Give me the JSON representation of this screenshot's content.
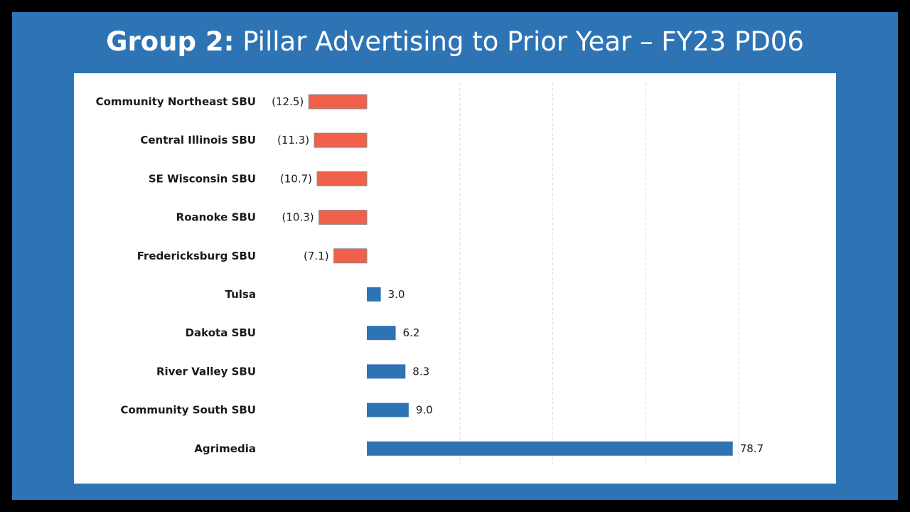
{
  "title": {
    "bold_part": "Group 2:",
    "rest": "Pillar Advertising to Prior Year – FY23 PD06"
  },
  "colors": {
    "border": "#000000",
    "background": "#2E74B5",
    "panel": "#FFFFFF",
    "negative": "#F0604A",
    "positive": "#2E74B5",
    "grid": "#D9D9D9"
  },
  "chart_data": {
    "type": "bar",
    "orientation": "horizontal",
    "title": "Group 2: Pillar Advertising to Prior Year – FY23 PD06",
    "xlabel": "",
    "ylabel": "",
    "xlim": [
      -12.5,
      80
    ],
    "grid": "vertical dashed",
    "categories": [
      "Community Northeast SBU",
      "Central Illinois SBU",
      "SE Wisconsin SBU",
      "Roanoke SBU",
      "Fredericksburg SBU",
      "Tulsa",
      "Dakota SBU",
      "River Valley SBU",
      "Community South SBU",
      "Agrimedia"
    ],
    "values": [
      -12.5,
      -11.3,
      -10.7,
      -10.3,
      -7.1,
      3.0,
      6.2,
      8.3,
      9.0,
      78.7
    ],
    "labels": [
      "(12.5)",
      "(11.3)",
      "(10.7)",
      "(10.3)",
      "(7.1)",
      "3.0",
      "6.2",
      "8.3",
      "9.0",
      "78.7"
    ]
  }
}
